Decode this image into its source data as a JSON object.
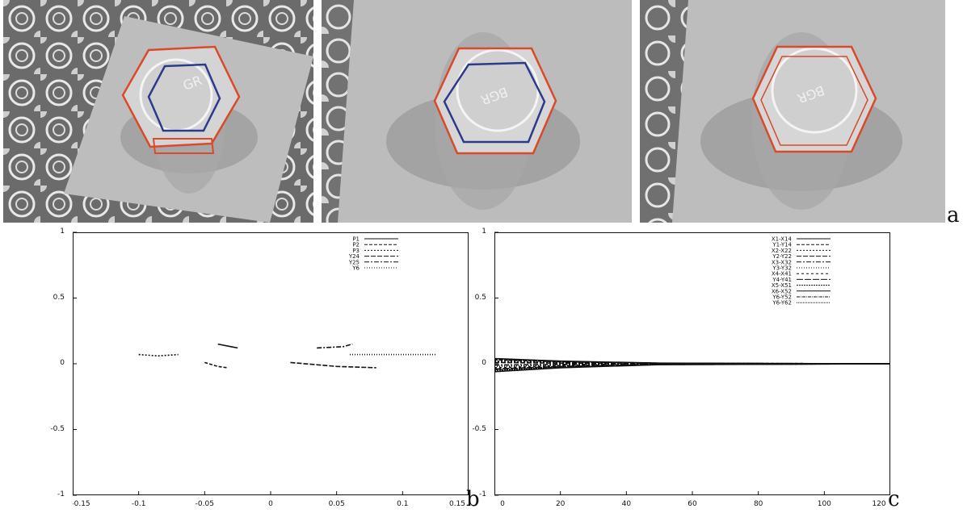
{
  "figure": {
    "panel_labels": {
      "a": "a",
      "b": "b",
      "c": "c"
    },
    "photos": [
      {
        "plate_text": "GR"
      },
      {
        "plate_text": "BGR"
      },
      {
        "plate_text": "BGR"
      }
    ]
  },
  "colors": {
    "outline_red": "#d94a2a",
    "outline_blue": "#2c3a8c",
    "ink": "#111111"
  },
  "chart_data": [
    {
      "type": "line",
      "panel": "b",
      "xlim": [
        -0.15,
        0.15
      ],
      "ylim": [
        -1,
        1
      ],
      "xticks": [
        -0.15,
        -0.1,
        -0.05,
        0,
        0.05,
        0.1,
        0.15
      ],
      "xtick_labels": [
        "-0.15",
        "-0.1",
        "-0.05",
        "0",
        "0.05",
        "0.1",
        "0.15"
      ],
      "yticks": [
        -1,
        -0.5,
        0,
        0.5,
        1
      ],
      "ytick_labels": [
        "-1",
        "-0.5",
        "0",
        "0.5",
        "1"
      ],
      "legend_position": "top-right",
      "series": [
        {
          "name": "P1",
          "dash": "",
          "points": [
            [
              -0.04,
              0.15
            ],
            [
              -0.03,
              0.13
            ],
            [
              -0.025,
              0.12
            ]
          ]
        },
        {
          "name": "P2",
          "dash": "4 2",
          "points": [
            [
              -0.05,
              0.01
            ],
            [
              -0.04,
              -0.02
            ],
            [
              -0.033,
              -0.03
            ]
          ]
        },
        {
          "name": "P3",
          "dash": "2 2",
          "points": [
            [
              -0.1,
              0.07
            ],
            [
              -0.085,
              0.06
            ],
            [
              -0.07,
              0.07
            ]
          ]
        },
        {
          "name": "Y24",
          "dash": "6 2",
          "points": [
            [
              0.015,
              0.01
            ],
            [
              0.05,
              -0.02
            ],
            [
              0.08,
              -0.03
            ]
          ]
        },
        {
          "name": "Y25",
          "dash": "6 2 2 2",
          "points": [
            [
              0.035,
              0.12
            ],
            [
              0.055,
              0.13
            ],
            [
              0.062,
              0.15
            ]
          ]
        },
        {
          "name": "Y6",
          "dash": "1 2",
          "points": [
            [
              0.06,
              0.07
            ],
            [
              0.1,
              0.07
            ],
            [
              0.125,
              0.07
            ]
          ]
        }
      ]
    },
    {
      "type": "line",
      "panel": "c",
      "xlim": [
        0,
        120
      ],
      "ylim": [
        -1,
        1
      ],
      "xticks": [
        0,
        20,
        40,
        60,
        80,
        100,
        120
      ],
      "xtick_labels": [
        "0",
        "20",
        "40",
        "60",
        "80",
        "100",
        "120"
      ],
      "yticks": [
        -1,
        -0.5,
        0,
        0.5,
        1
      ],
      "ytick_labels": [
        "-1",
        "-0.5",
        "0",
        "0.5",
        "1"
      ],
      "legend_position": "top-right",
      "series": [
        {
          "name": "X1-X14",
          "dash": "",
          "points": [
            [
              0,
              0.04
            ],
            [
              20,
              0.02
            ],
            [
              50,
              0.005
            ],
            [
              120,
              0
            ]
          ]
        },
        {
          "name": "Y1-Y14",
          "dash": "4 2",
          "points": [
            [
              0,
              0.03
            ],
            [
              20,
              0.015
            ],
            [
              50,
              0.004
            ],
            [
              120,
              0
            ]
          ]
        },
        {
          "name": "X2-X22",
          "dash": "2 2",
          "points": [
            [
              0,
              0.02
            ],
            [
              20,
              0.01
            ],
            [
              50,
              0.003
            ],
            [
              120,
              0
            ]
          ]
        },
        {
          "name": "Y2-Y22",
          "dash": "6 2",
          "points": [
            [
              0,
              0.01
            ],
            [
              20,
              0.005
            ],
            [
              50,
              0.002
            ],
            [
              120,
              0
            ]
          ]
        },
        {
          "name": "X3-X32",
          "dash": "6 2 2 2",
          "points": [
            [
              0,
              -0.01
            ],
            [
              20,
              -0.005
            ],
            [
              50,
              -0.002
            ],
            [
              120,
              0
            ]
          ]
        },
        {
          "name": "Y3-Y32",
          "dash": "1 2",
          "points": [
            [
              0,
              -0.02
            ],
            [
              20,
              -0.01
            ],
            [
              50,
              -0.003
            ],
            [
              120,
              0
            ]
          ]
        },
        {
          "name": "X4-X41",
          "dash": "3 3",
          "points": [
            [
              0,
              -0.03
            ],
            [
              20,
              -0.015
            ],
            [
              50,
              -0.004
            ],
            [
              120,
              0
            ]
          ]
        },
        {
          "name": "Y4-Y41",
          "dash": "8 2",
          "points": [
            [
              0,
              -0.04
            ],
            [
              20,
              -0.02
            ],
            [
              50,
              -0.005
            ],
            [
              120,
              0
            ]
          ]
        },
        {
          "name": "X5-X51",
          "dash": "2 1",
          "points": [
            [
              0,
              -0.05
            ],
            [
              20,
              -0.025
            ],
            [
              50,
              -0.006
            ],
            [
              120,
              0
            ]
          ]
        },
        {
          "name": "X6-X52",
          "dash": "",
          "points": [
            [
              0,
              -0.06
            ],
            [
              20,
              -0.03
            ],
            [
              50,
              -0.007
            ],
            [
              120,
              0
            ]
          ]
        },
        {
          "name": "Y6-Y52",
          "dash": "4 1 1 1",
          "points": [
            [
              0,
              0.035
            ],
            [
              20,
              0.018
            ],
            [
              50,
              0.004
            ],
            [
              120,
              0
            ]
          ]
        },
        {
          "name": "Y6-Y62",
          "dash": "1 1",
          "points": [
            [
              0,
              -0.045
            ],
            [
              20,
              -0.022
            ],
            [
              50,
              -0.005
            ],
            [
              120,
              0
            ]
          ]
        }
      ]
    }
  ]
}
